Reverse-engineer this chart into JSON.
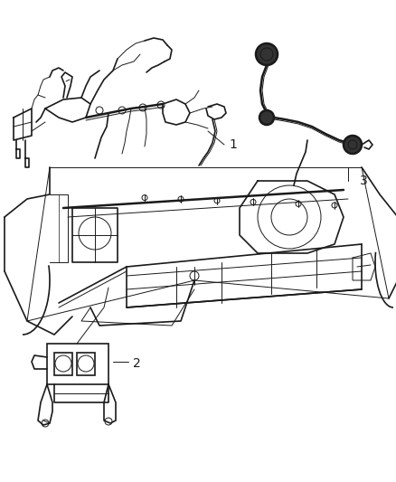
{
  "background_color": "#ffffff",
  "fig_width": 4.38,
  "fig_height": 5.33,
  "dpi": 100,
  "label_1": "1",
  "label_2": "2",
  "label_3": "3",
  "line_color": "#1a1a1a",
  "text_color": "#1a1a1a",
  "font_size": 10,
  "lw_thick": 1.8,
  "lw_main": 1.2,
  "lw_thin": 0.7,
  "lw_xtra": 0.5
}
